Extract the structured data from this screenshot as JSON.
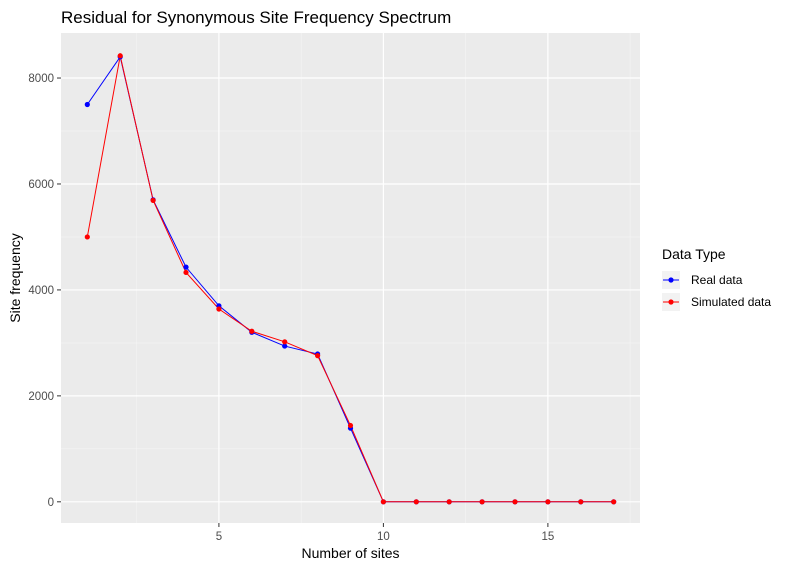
{
  "chart_data": {
    "type": "line",
    "title": "Residual for Synonymous Site Frequency Spectrum",
    "xlabel": "Number of sites",
    "ylabel": "Site frequency",
    "xlim": [
      0.2,
      17.8
    ],
    "ylim": [
      -400,
      8850
    ],
    "xticks": [
      5,
      10,
      15
    ],
    "yticks": [
      0,
      2000,
      4000,
      6000,
      8000
    ],
    "grid": true,
    "legend": {
      "title": "Data Type",
      "position": "right"
    },
    "x": [
      1,
      2,
      3,
      4,
      5,
      6,
      7,
      8,
      9,
      10,
      11,
      12,
      13,
      14,
      15,
      16,
      17
    ],
    "series": [
      {
        "name": "Real data",
        "color": "#0000ff",
        "values": [
          7500,
          8400,
          5700,
          4430,
          3700,
          3200,
          2940,
          2790,
          1390,
          0,
          0,
          0,
          0,
          0,
          0,
          0,
          0
        ]
      },
      {
        "name": "Simulated data",
        "color": "#ff0000",
        "values": [
          5000,
          8420,
          5690,
          4330,
          3640,
          3220,
          3020,
          2760,
          1440,
          0,
          0,
          0,
          0,
          0,
          0,
          0,
          0
        ]
      }
    ]
  }
}
